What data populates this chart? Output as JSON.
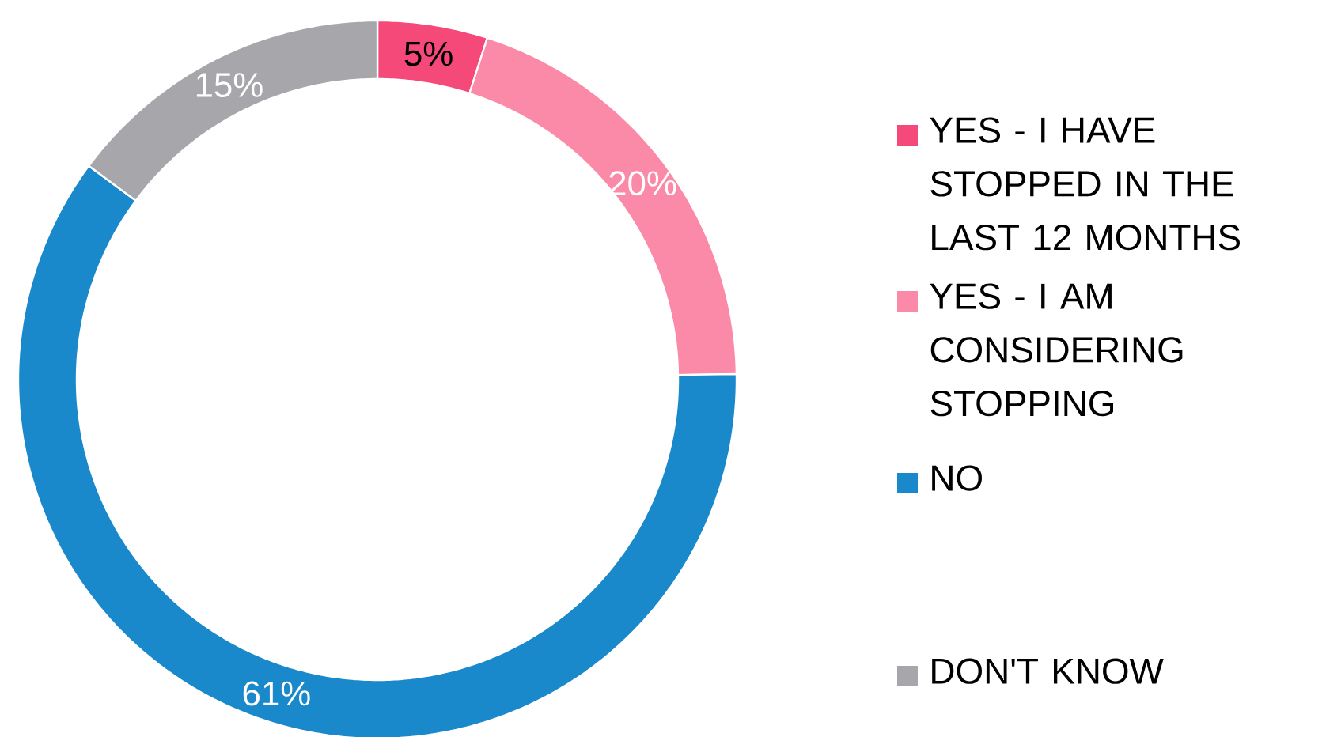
{
  "chart_data": {
    "type": "donut",
    "categories": [
      "YES - I HAVE STOPPED IN THE LAST 12 MONTHS",
      "YES - I AM CONSIDERING STOPPING",
      "NO",
      "DON'T KNOW"
    ],
    "values": [
      5,
      20,
      61,
      15
    ],
    "value_labels": [
      "5%",
      "20%",
      "61%",
      "15%"
    ],
    "colors": [
      "#f5497a",
      "#fb8aa9",
      "#1a89cb",
      "#a6a6ab"
    ],
    "legend": "right"
  }
}
